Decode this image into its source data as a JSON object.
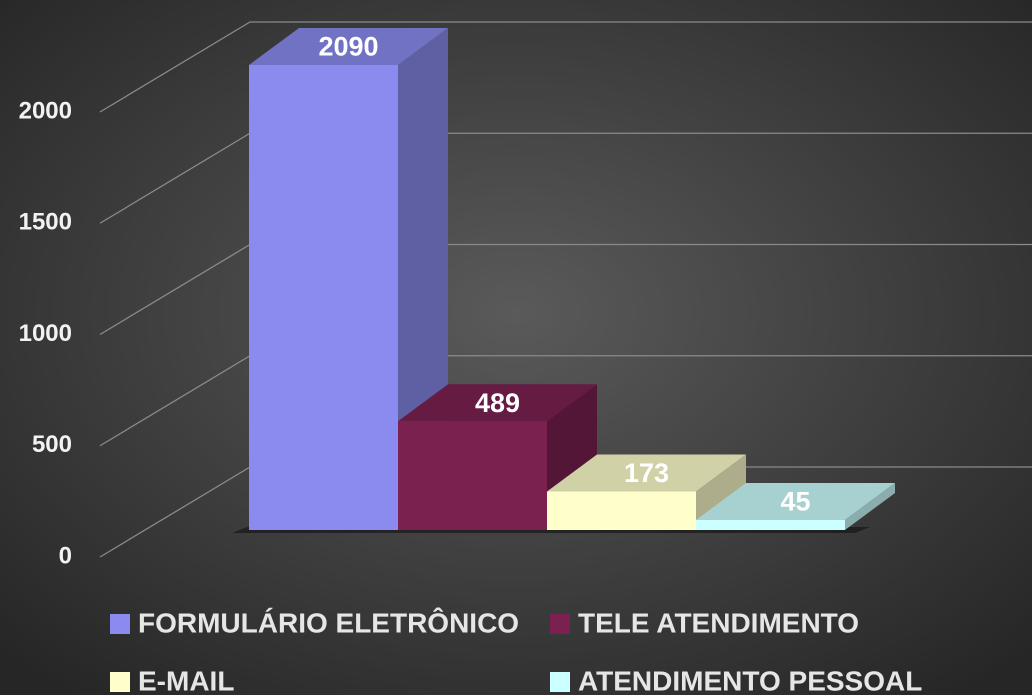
{
  "chart_data": {
    "type": "bar3d",
    "categories": [
      "FORMULÁRIO ELETRÔNICO",
      "TELE ATENDIMENTO",
      "E-MAIL",
      "ATENDIMENTO PESSOAL"
    ],
    "values": [
      2090,
      489,
      173,
      45
    ],
    "colors": [
      "#8b8bef",
      "#7b2150",
      "#ffffcc",
      "#ccffff"
    ],
    "ylim": [
      0,
      2000
    ],
    "yticks": [
      0,
      500,
      1000,
      1500,
      2000
    ],
    "grid": true,
    "legend": "bottom"
  }
}
